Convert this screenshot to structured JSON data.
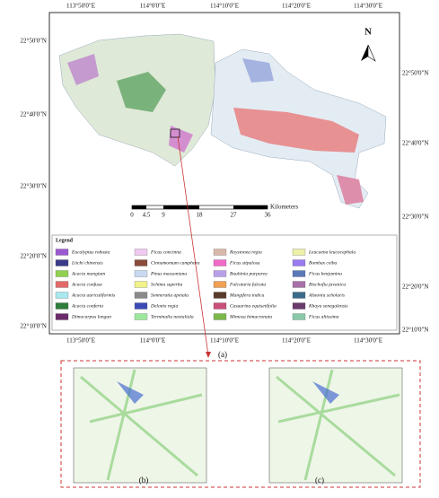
{
  "map": {
    "top_labels": [
      "113°50'0\"E",
      "114°0'0\"E",
      "114°10'0\"E",
      "114°20'0\"E",
      "114°30'0\"E"
    ],
    "bottom_labels": [
      "113°50'0\"E",
      "114°0'0\"E",
      "114°10'0\"E",
      "114°20'0\"E",
      "114°30'0\"E"
    ],
    "left_labels": [
      "22°50'0\"N",
      "22°40'0\"N",
      "22°30'0\"N",
      "22°20'0\"N",
      "22°10'0\"N"
    ],
    "right_labels": [
      "22°50'0\"N",
      "22°40'0\"N",
      "22°30'0\"N",
      "22°20'0\"N",
      "22°10'0\"N"
    ],
    "north": "N",
    "scale": {
      "labels": [
        "0",
        "4.5",
        "9",
        "18",
        "27",
        "36"
      ],
      "unit": "Kilometers"
    },
    "legend": {
      "title": "Legend",
      "items": [
        "Eucalyptus robusta",
        "Litchi chinensis",
        "Acacia mangium",
        "Acacia confusa",
        "Acacia auriculiformis",
        "Acacia conferta",
        "Dimocarpus longan",
        "Ficus concinna",
        "Cinnamomum camphora",
        "Pinus massoniana",
        "Schima superba",
        "Sonneratia apetala",
        "Delonix regia",
        "Terminalia neotaliala",
        "Roystonea regia",
        "Ficus stipulosa",
        "Bauhinia purpurea",
        "Falcataria falcata",
        "Mangifera indica",
        "Casuarina equisetifolia",
        "Mimosa bimucronata",
        "Leucaena leucocephala",
        "Bombax ceiba",
        "Ficus benjamina",
        "Bischofia javanica",
        "Alstonia scholaris",
        "Khaya senegalensis",
        "Ficus altissima"
      ]
    },
    "panel_a": "(a)"
  },
  "insets": {
    "b": "(b)",
    "c": "(c)"
  }
}
